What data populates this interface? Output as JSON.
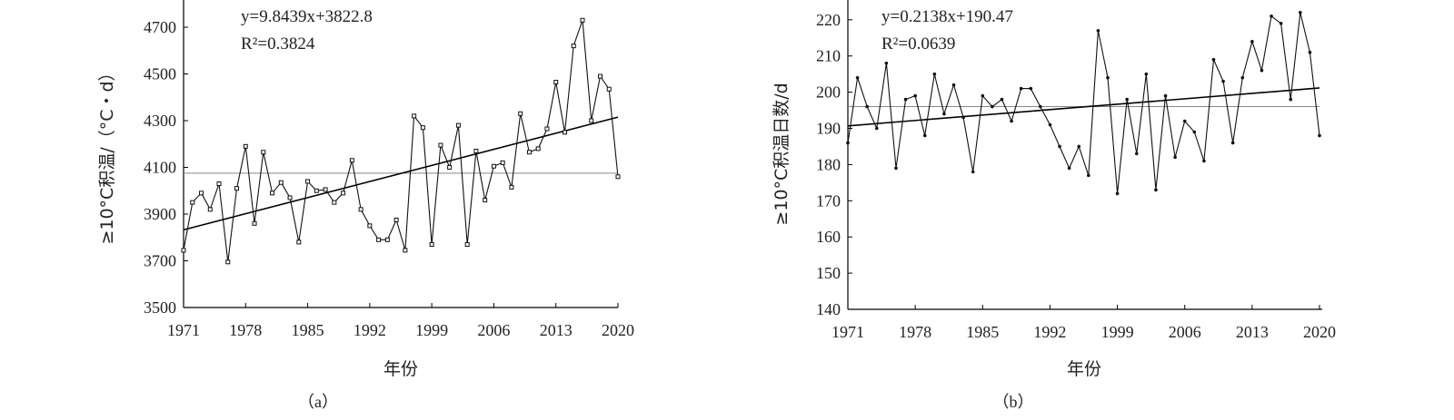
{
  "chart_data": [
    {
      "type": "line",
      "panel_label": "（a）",
      "title": "",
      "xlabel": "年份",
      "ylabel": "≥10°C积温/（°C・d）",
      "equation": "y=9.8439x+3822.8",
      "r2_label": "R²=0.3824",
      "xlim": [
        1971,
        2020
      ],
      "ylim": [
        3500,
        4800
      ],
      "x_ticks": [
        1971,
        1978,
        1985,
        1992,
        1999,
        2006,
        2013,
        2020
      ],
      "y_ticks": [
        3500,
        3700,
        3900,
        4100,
        4300,
        4500,
        4700
      ],
      "x_tick_labels": [
        "1971",
        "1978",
        "1985",
        "1992",
        "1999",
        "2006",
        "2013",
        "2020"
      ],
      "y_tick_labels": [
        "3500",
        "3700",
        "3900",
        "4100",
        "4300",
        "4500",
        "4700"
      ],
      "marker": "open-square",
      "trend": {
        "slope": 9.8439,
        "intercept": 3822.8
      },
      "mean": 4075,
      "x": [
        1971,
        1972,
        1973,
        1974,
        1975,
        1976,
        1977,
        1978,
        1979,
        1980,
        1981,
        1982,
        1983,
        1984,
        1985,
        1986,
        1987,
        1988,
        1989,
        1990,
        1991,
        1992,
        1993,
        1994,
        1995,
        1996,
        1997,
        1998,
        1999,
        2000,
        2001,
        2002,
        2003,
        2004,
        2005,
        2006,
        2007,
        2008,
        2009,
        2010,
        2011,
        2012,
        2013,
        2014,
        2015,
        2016,
        2017,
        2018,
        2019,
        2020
      ],
      "values": [
        3745,
        3950,
        3990,
        3920,
        4030,
        3695,
        4010,
        4190,
        3860,
        4165,
        3990,
        4035,
        3970,
        3780,
        4040,
        4000,
        4005,
        3950,
        3990,
        4130,
        3920,
        3850,
        3790,
        3790,
        3875,
        3745,
        4320,
        4270,
        3770,
        4195,
        4100,
        4280,
        3770,
        4170,
        3960,
        4105,
        4120,
        4015,
        4330,
        4165,
        4180,
        4265,
        4465,
        4250,
        4620,
        4730,
        4300,
        4490,
        4435,
        4060
      ]
    },
    {
      "type": "line",
      "panel_label": "（b）",
      "title": "",
      "xlabel": "年份",
      "ylabel": "≥10°C积温日数/d",
      "equation": "y=0.2138x+190.47",
      "r2_label": "R²=0.0639",
      "xlim": [
        1971,
        2020
      ],
      "ylim": [
        140,
        225
      ],
      "x_ticks": [
        1971,
        1978,
        1985,
        1992,
        1999,
        2006,
        2013,
        2020
      ],
      "y_ticks": [
        140,
        150,
        160,
        170,
        180,
        190,
        200,
        210,
        220
      ],
      "x_tick_labels": [
        "1971",
        "1978",
        "1985",
        "1992",
        "1999",
        "2006",
        "2013",
        "2020"
      ],
      "y_tick_labels": [
        "140",
        "150",
        "160",
        "170",
        "180",
        "190",
        "200",
        "210",
        "220"
      ],
      "marker": "dot",
      "trend": {
        "slope": 0.2138,
        "intercept": 190.47
      },
      "mean": 196,
      "x": [
        1971,
        1972,
        1973,
        1974,
        1975,
        1976,
        1977,
        1978,
        1979,
        1980,
        1981,
        1982,
        1983,
        1984,
        1985,
        1986,
        1987,
        1988,
        1989,
        1990,
        1991,
        1992,
        1993,
        1994,
        1995,
        1996,
        1997,
        1998,
        1999,
        2000,
        2001,
        2002,
        2003,
        2004,
        2005,
        2006,
        2007,
        2008,
        2009,
        2010,
        2011,
        2012,
        2013,
        2014,
        2015,
        2016,
        2017,
        2018,
        2019,
        2020
      ],
      "values": [
        186,
        204,
        196,
        190,
        208,
        179,
        198,
        199,
        188,
        205,
        194,
        202,
        193,
        178,
        199,
        196,
        198,
        192,
        201,
        201,
        196,
        191,
        185,
        179,
        185,
        177,
        217,
        204,
        172,
        198,
        183,
        205,
        173,
        199,
        182,
        192,
        189,
        181,
        209,
        203,
        186,
        204,
        214,
        206,
        221,
        219,
        198,
        222,
        211,
        188
      ]
    }
  ]
}
